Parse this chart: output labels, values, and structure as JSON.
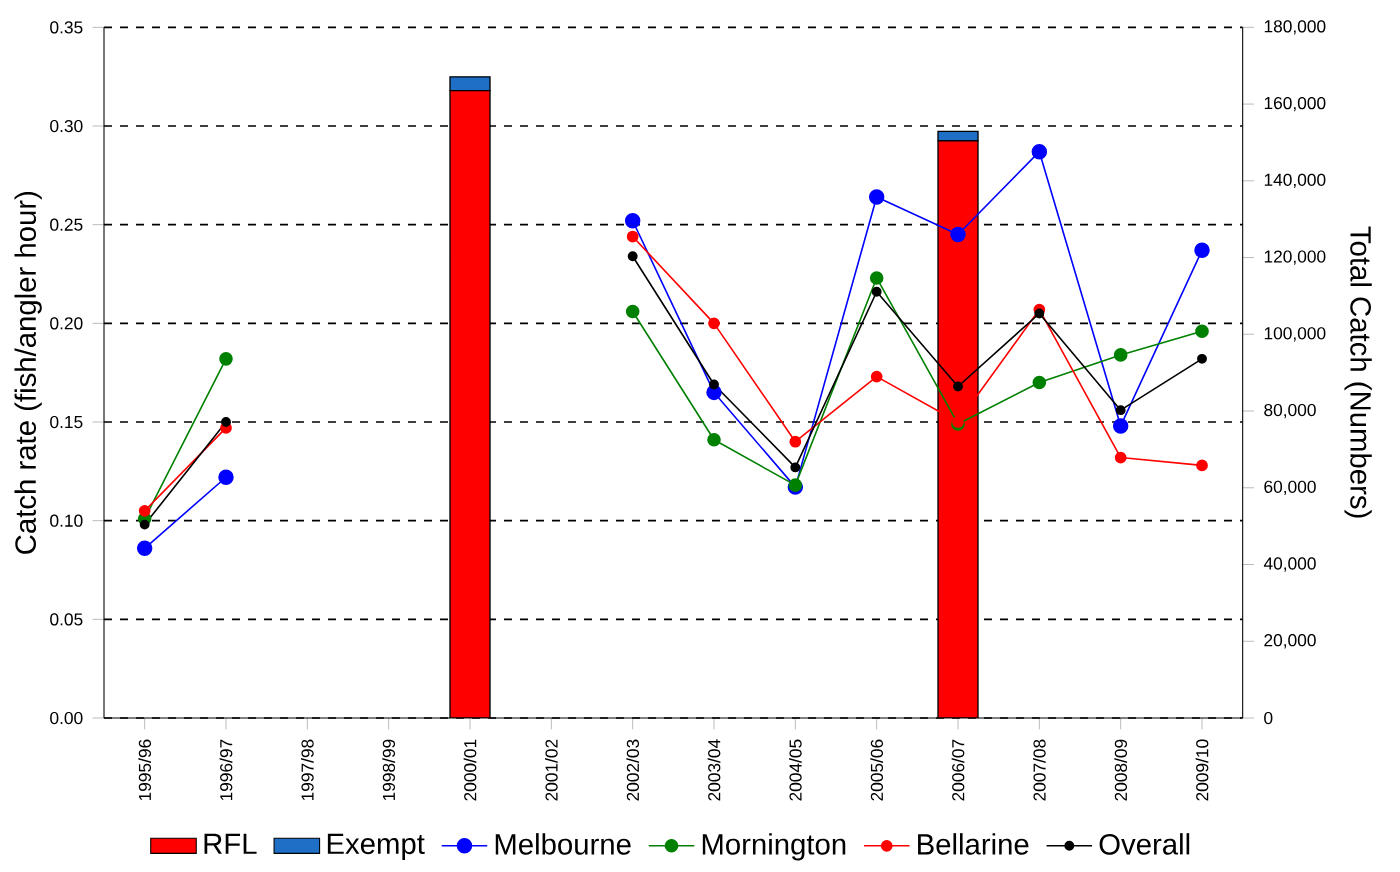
{
  "chart_data": {
    "type": "bar",
    "ylabel": "Catch rate (fish/angler hour)",
    "y2label": "Total Catch (Numbers)",
    "categories": [
      "1995/96",
      "1996/97",
      "1997/98",
      "1998/99",
      "2000/01",
      "2001/02",
      "2002/03",
      "2003/04",
      "2004/05",
      "2005/06",
      "2006/07",
      "2007/08",
      "2008/09",
      "2009/10"
    ],
    "stacked": true,
    "series": [
      {
        "name": "RFL",
        "axis": "y2",
        "color": "#ff0000",
        "values": [
          null,
          null,
          null,
          null,
          163500,
          null,
          null,
          null,
          null,
          null,
          150400,
          null,
          null,
          null
        ]
      },
      {
        "name": "Exempt",
        "axis": "y2",
        "color": "#1f6fc6",
        "values": [
          null,
          null,
          null,
          null,
          3600,
          null,
          null,
          null,
          null,
          null,
          2500,
          null,
          null,
          null
        ]
      },
      {
        "name": "Melbourne",
        "type": "line",
        "color": "#0000ff",
        "values": [
          0.086,
          0.122,
          null,
          null,
          null,
          null,
          0.252,
          0.165,
          0.117,
          0.264,
          0.245,
          0.287,
          0.148,
          0.237
        ]
      },
      {
        "name": "Mornington",
        "type": "line",
        "color": "#008000",
        "values": [
          0.101,
          0.182,
          null,
          null,
          null,
          null,
          0.206,
          0.141,
          0.118,
          0.223,
          0.149,
          0.17,
          0.184,
          0.196
        ]
      },
      {
        "name": "Bellarine",
        "type": "line",
        "color": "#ff0000",
        "values": [
          0.105,
          0.147,
          null,
          null,
          null,
          null,
          0.244,
          0.2,
          0.14,
          0.173,
          0.15,
          0.207,
          0.132,
          0.128
        ]
      },
      {
        "name": "Overall",
        "type": "line",
        "color": "#000000",
        "values": [
          0.098,
          0.15,
          null,
          null,
          null,
          null,
          0.234,
          0.169,
          0.127,
          0.216,
          0.168,
          0.205,
          0.156,
          0.182
        ]
      }
    ],
    "ylim": [
      0,
      0.35
    ],
    "yticks": [
      {
        "value": 0,
        "label": "0.00"
      },
      {
        "value": 0.05,
        "label": "0.05"
      },
      {
        "value": 0.1,
        "label": "0.10"
      },
      {
        "value": 0.15,
        "label": "0.15"
      },
      {
        "value": 0.2,
        "label": "0.20"
      },
      {
        "value": 0.25,
        "label": "0.25"
      },
      {
        "value": 0.3,
        "label": "0.30"
      },
      {
        "value": 0.35,
        "label": "0.35"
      }
    ],
    "y2lim": [
      0,
      180000
    ],
    "y2ticks": [
      0,
      {
        "value": 20000,
        "label": "20,000"
      },
      {
        "value": 40000,
        "label": "40,000"
      },
      {
        "value": 60000,
        "label": "60,000"
      },
      {
        "value": 80000,
        "label": "80,000"
      },
      {
        "value": 100000,
        "label": "100,000"
      },
      {
        "value": 120000,
        "label": "120,000"
      },
      {
        "value": 140000,
        "label": "140,000"
      },
      {
        "value": 160000,
        "label": "160,000"
      },
      {
        "value": 180000,
        "label": "180,000"
      }
    ],
    "grid": "y",
    "legend": "bottom",
    "marker": "circle"
  }
}
